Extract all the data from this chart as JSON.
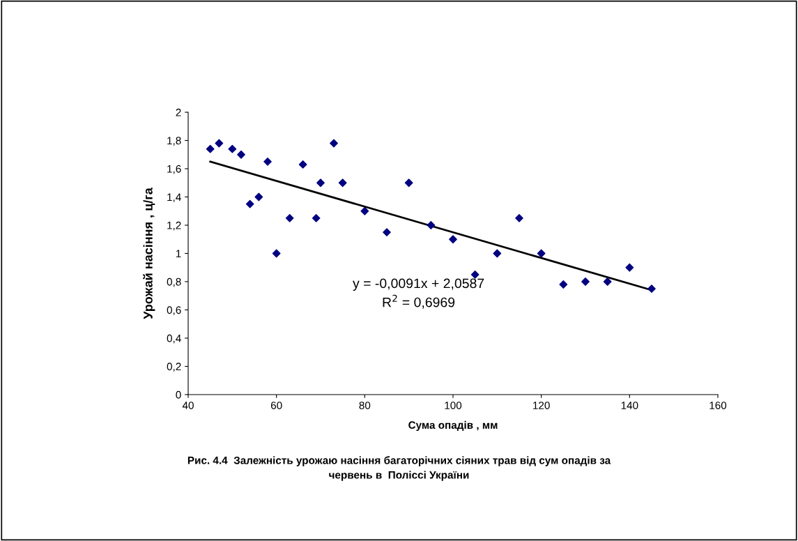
{
  "chart_data": {
    "type": "scatter",
    "title": "Рис. 4.4  Залежність урожаю насіння багаторічних сіяних трав від сум опадів за\nчервень в  Поліссі України",
    "xlabel": "Сума опадів , мм",
    "ylabel": "Урожай насіння , ц/га",
    "x": [
      45,
      47,
      50,
      52,
      54,
      56,
      58,
      60,
      63,
      66,
      69,
      70,
      73,
      75,
      80,
      85,
      90,
      95,
      100,
      105,
      110,
      115,
      120,
      125,
      130,
      135,
      140,
      145
    ],
    "series": [
      {
        "color": "#000080",
        "marker": "diamond",
        "values": [
          1.74,
          1.78,
          1.74,
          1.7,
          1.35,
          1.4,
          1.65,
          1.0,
          1.25,
          1.63,
          1.25,
          1.5,
          1.78,
          1.5,
          1.3,
          1.15,
          1.5,
          1.2,
          1.1,
          0.85,
          1.0,
          1.25,
          1.0,
          0.78,
          0.8,
          0.8,
          0.9,
          0.75
        ]
      },
      {
        "type": "line",
        "color": "#000000",
        "x": [
          45,
          145
        ],
        "values": [
          1.65,
          0.74
        ]
      }
    ],
    "annotations": [
      "y = -0,0091x + 2,0587",
      "R$^{2}$ = 0,6969"
    ],
    "xlim": [
      40,
      160
    ],
    "xticks": [
      40,
      60,
      80,
      100,
      120,
      140,
      160
    ],
    "ylim": [
      0,
      2
    ],
    "yticks": [
      0,
      {
        "value": 0.2,
        "label": "0,2"
      },
      {
        "value": 0.4,
        "label": "0,4"
      },
      {
        "value": 0.6,
        "label": "0,6"
      },
      {
        "value": 0.8,
        "label": "0,8"
      },
      1,
      {
        "value": 1.2,
        "label": "1,2"
      },
      {
        "value": 1.4,
        "label": "1,4"
      },
      {
        "value": 1.6,
        "label": "1,6"
      },
      {
        "value": 1.8,
        "label": "1,8"
      },
      2
    ],
    "grid": false,
    "legend": false
  }
}
